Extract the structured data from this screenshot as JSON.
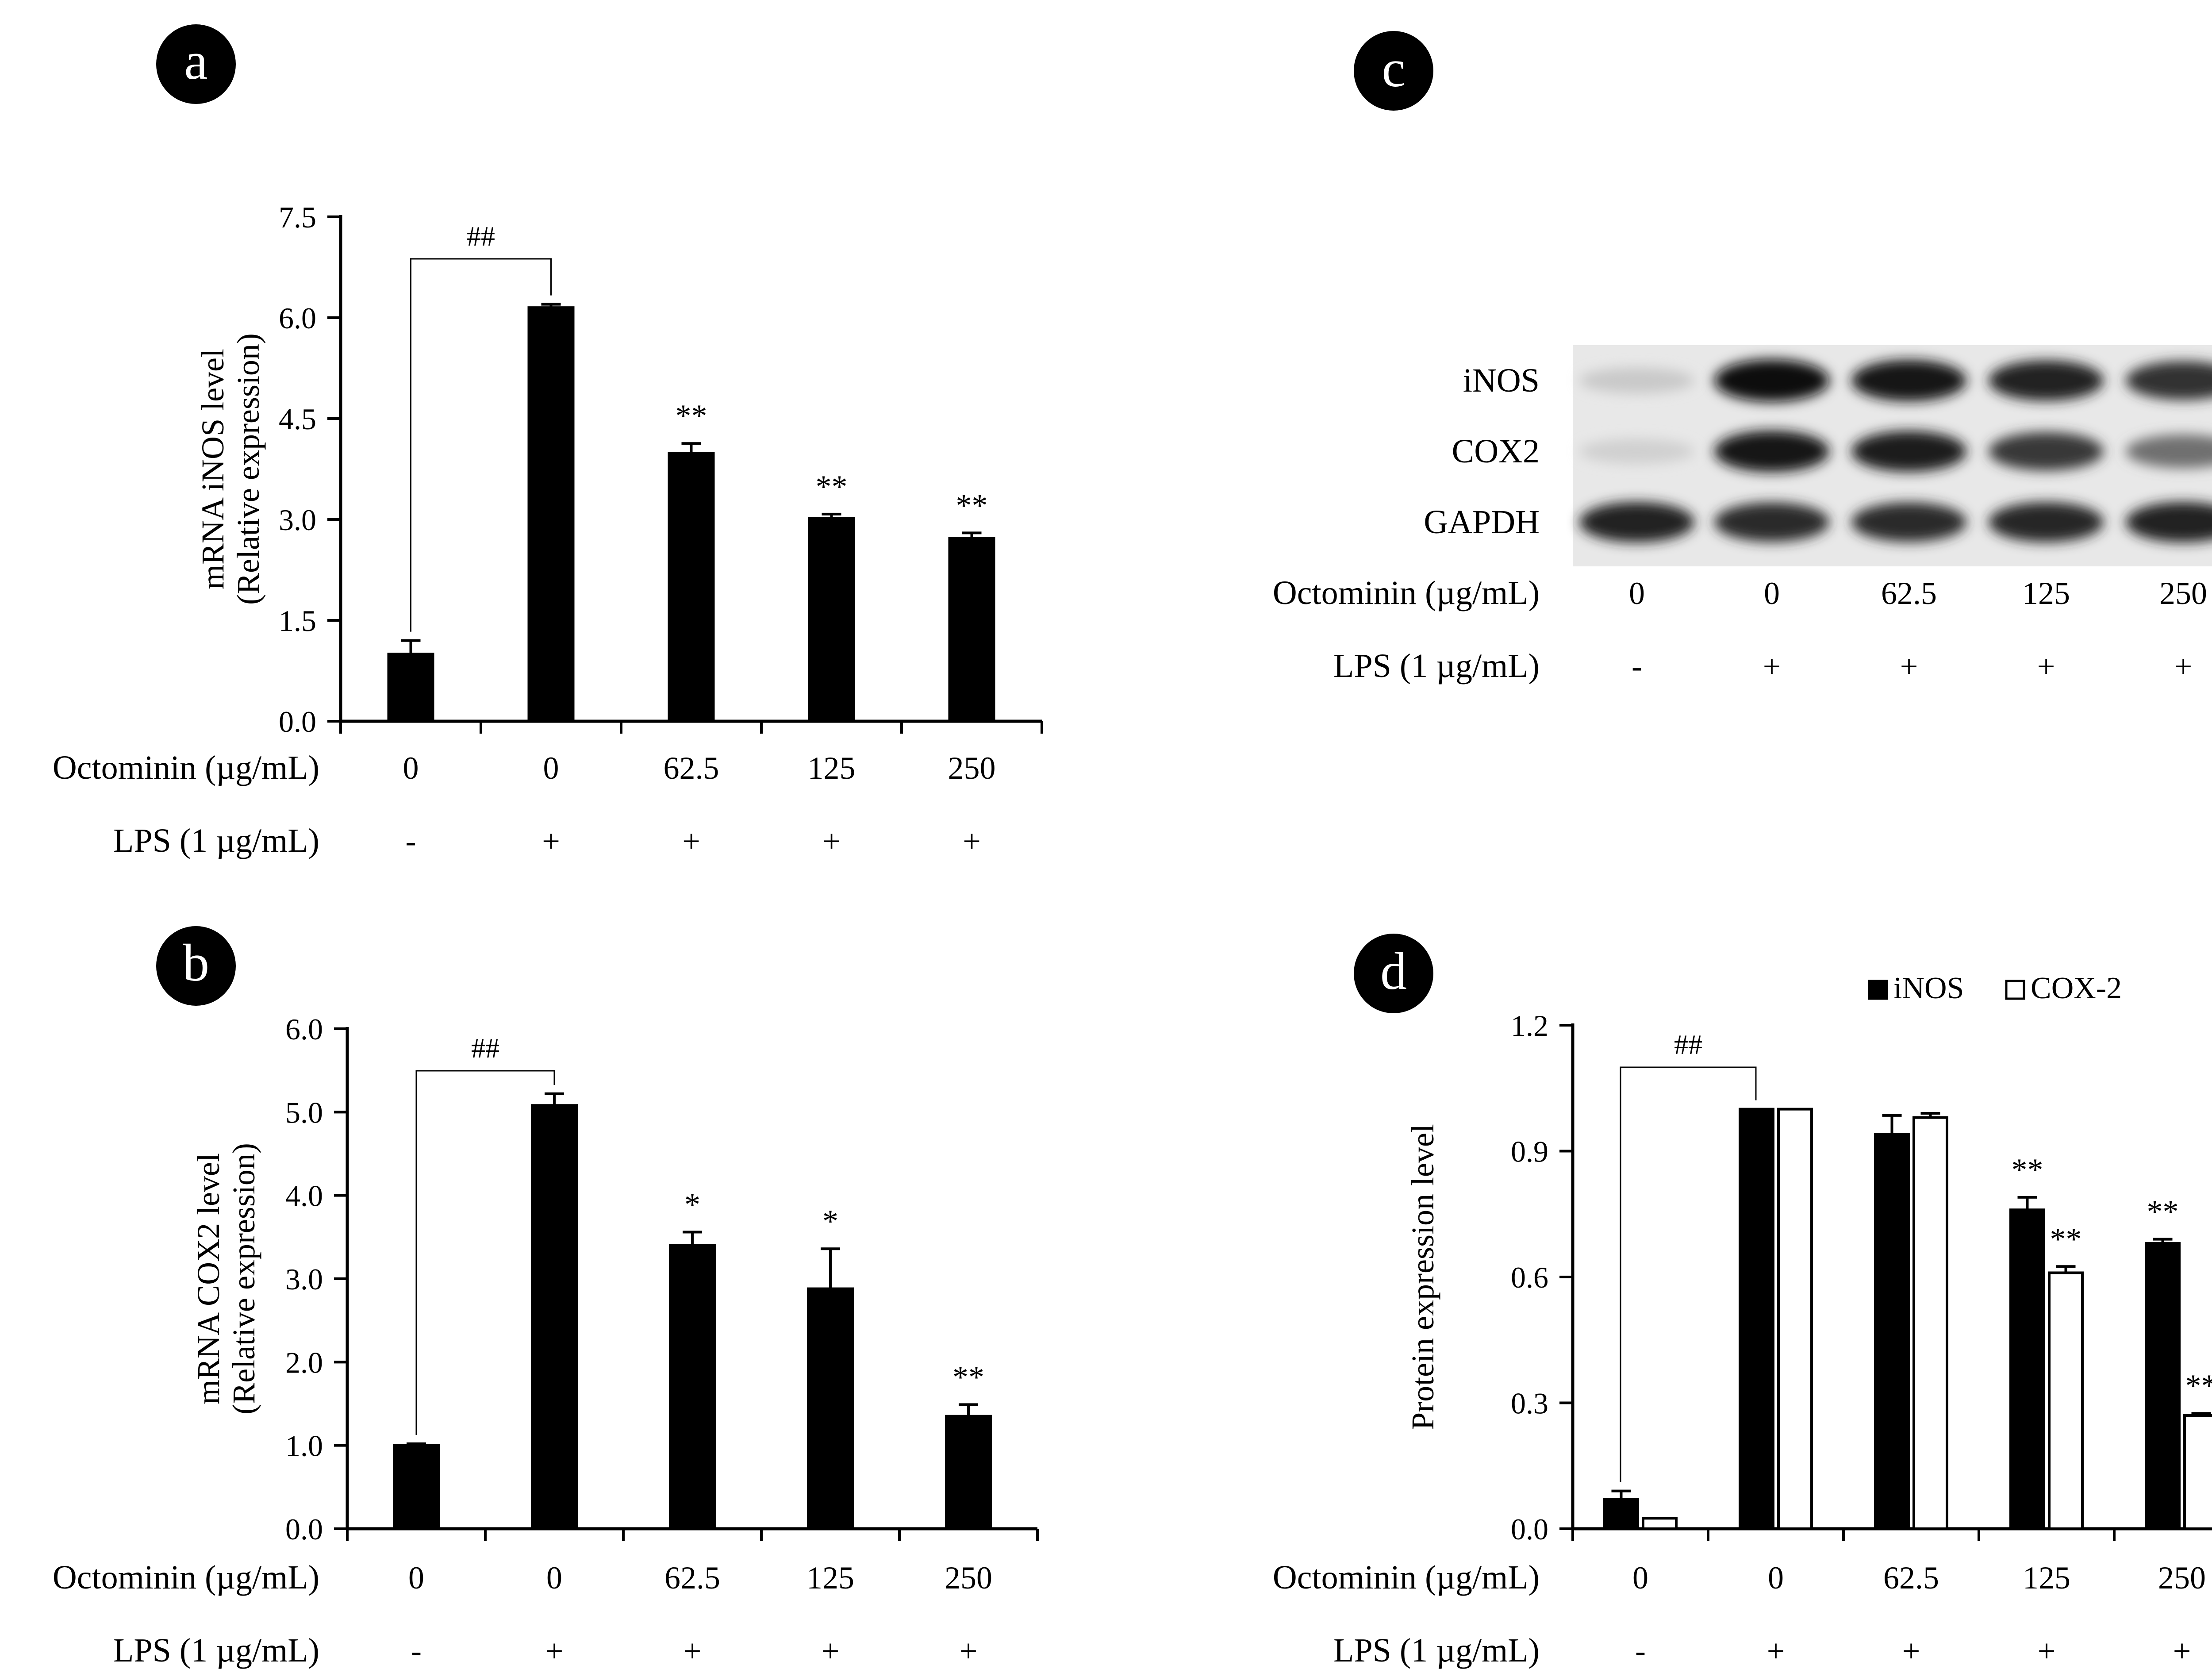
{
  "panels": {
    "a": {
      "letter": "a",
      "octominin_label": "Octominin (µg/mL)",
      "lps_label": "LPS (1 µg/mL)"
    },
    "b": {
      "letter": "b",
      "octominin_label": "Octominin (µg/mL)",
      "lps_label": "LPS (1 µg/mL)"
    },
    "c": {
      "letter": "c",
      "octominin_label": "Octominin (µg/mL)",
      "lps_label": "LPS (1 µg/mL)",
      "doses": [
        "0",
        "0",
        "62.5",
        "125",
        "250"
      ],
      "lps": [
        "-",
        "+",
        "+",
        "+",
        "+"
      ]
    },
    "d": {
      "letter": "d",
      "octominin_label": "Octominin (µg/mL)",
      "lps_label": "LPS (1 µg/mL)"
    }
  },
  "blot": {
    "rows": [
      {
        "label": "iNOS",
        "intensity": [
          0.15,
          1.0,
          0.95,
          0.9,
          0.82
        ]
      },
      {
        "label": "COX2",
        "intensity": [
          0.12,
          0.95,
          0.92,
          0.8,
          0.55
        ]
      },
      {
        "label": "GAPDH",
        "intensity": [
          0.9,
          0.85,
          0.85,
          0.88,
          0.9
        ]
      }
    ]
  },
  "chart_data": [
    {
      "type": "bar",
      "panel": "a",
      "categories": [
        "0",
        "0",
        "62.5",
        "125",
        "250"
      ],
      "lps": [
        "-",
        "+",
        "+",
        "+",
        "+"
      ],
      "values": [
        1.0,
        6.15,
        3.98,
        3.02,
        2.72
      ],
      "errors": [
        0.2,
        0.05,
        0.15,
        0.06,
        0.08
      ],
      "significance": [
        "",
        "",
        "**",
        "**",
        "**"
      ],
      "bracket": {
        "from": 0,
        "to": 1,
        "label": "##"
      },
      "ylabel_line1": "mRNA iNOS level",
      "ylabel_line2": "(Relative expression)",
      "ylim": [
        0,
        7.5
      ],
      "yticks": [
        "0.0",
        "1.5",
        "3.0",
        "4.5",
        "6.0",
        "7.5"
      ]
    },
    {
      "type": "bar",
      "panel": "b",
      "categories": [
        "0",
        "0",
        "62.5",
        "125",
        "250"
      ],
      "lps": [
        "-",
        "+",
        "+",
        "+",
        "+"
      ],
      "values": [
        1.0,
        5.08,
        3.4,
        2.88,
        1.35
      ],
      "errors": [
        0.02,
        0.14,
        0.16,
        0.48,
        0.14
      ],
      "significance": [
        "",
        "",
        "*",
        "*",
        "**"
      ],
      "bracket": {
        "from": 0,
        "to": 1,
        "label": "##"
      },
      "ylabel_line1": "mRNA COX2 level",
      "ylabel_line2": "(Relative expression)",
      "ylim": [
        0,
        6.0
      ],
      "yticks": [
        "0.0",
        "1.0",
        "2.0",
        "3.0",
        "4.0",
        "5.0",
        "6.0"
      ]
    },
    {
      "type": "bar",
      "panel": "d",
      "categories": [
        "0",
        "0",
        "62.5",
        "125",
        "250"
      ],
      "lps": [
        "-",
        "+",
        "+",
        "+",
        "+"
      ],
      "series": [
        {
          "name": "iNOS",
          "values": [
            0.07,
            1.0,
            0.94,
            0.76,
            0.68
          ],
          "errors": [
            0.02,
            0.0,
            0.045,
            0.03,
            0.01
          ],
          "significance": [
            "",
            "",
            "",
            "**",
            "**"
          ],
          "color": "#000000"
        },
        {
          "name": "COX-2",
          "values": [
            0.025,
            1.0,
            0.98,
            0.61,
            0.27
          ],
          "errors": [
            0.0,
            0.0,
            0.01,
            0.015,
            0.005
          ],
          "significance": [
            "",
            "",
            "",
            "**",
            "**"
          ],
          "color": "#ffffff"
        }
      ],
      "bracket": {
        "from": 0,
        "to": 1,
        "label": "##"
      },
      "ylabel": "Protein expression level",
      "ylim": [
        0,
        1.2
      ],
      "yticks": [
        "0.0",
        "0.3",
        "0.6",
        "0.9",
        "1.2"
      ],
      "legend_position": "top-right"
    }
  ]
}
